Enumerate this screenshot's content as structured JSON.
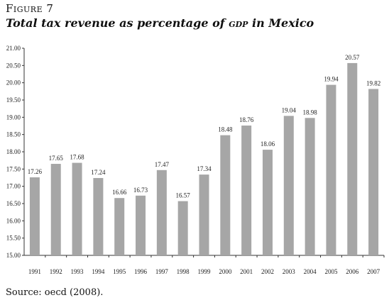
{
  "figure_label": "Figure 7",
  "title_pre": "Total tax revenue as percentage of ",
  "title_abbr": "gdp",
  "title_post": " in Mexico",
  "source": "Source: oecd (2008).",
  "chart_data": {
    "type": "bar",
    "categories": [
      "1991",
      "1992",
      "1993",
      "1994",
      "1995",
      "1996",
      "1997",
      "1998",
      "1999",
      "2000",
      "2001",
      "2002",
      "2003",
      "2004",
      "2005",
      "2006",
      "2007"
    ],
    "values": [
      17.26,
      17.65,
      17.68,
      17.24,
      16.66,
      16.73,
      17.47,
      16.57,
      17.34,
      18.48,
      18.76,
      18.06,
      19.04,
      18.98,
      19.94,
      20.57,
      19.82
    ],
    "value_labels": [
      "17.26",
      "17.65",
      "17.68",
      "17.24",
      "16.66",
      "16.73",
      "17.47",
      "16.57",
      "17.34",
      "18.48",
      "18.76",
      "18.06",
      "19.04",
      "18.98",
      "19.94",
      "20.57",
      "19.82"
    ],
    "ylim": [
      15.0,
      21.0
    ],
    "yticks": [
      "15.00",
      "15.50",
      "16.00",
      "16.50",
      "17.00",
      "17.50",
      "18.00",
      "18.50",
      "19.00",
      "19.50",
      "20.00",
      "20.50",
      "21.00"
    ],
    "bar_color": "#a6a6a6",
    "grid": false
  }
}
